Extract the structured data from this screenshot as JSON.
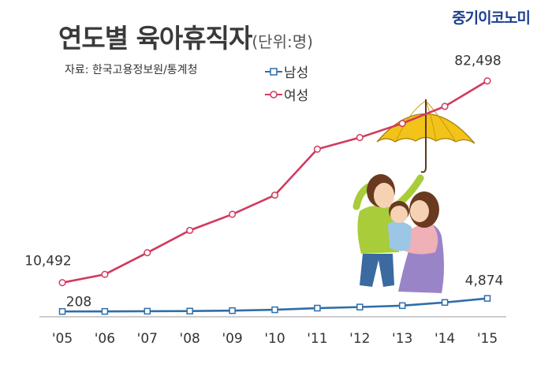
{
  "header": {
    "title": "연도별 육아휴직자",
    "unit": "(단위:명)",
    "brand": "중기이코노미",
    "source": "자료: 한국고용정보원/통계청"
  },
  "colors": {
    "female": "#d23a5e",
    "male": "#2f6ea8",
    "axis": "#bbbbbb"
  },
  "chart_data": {
    "type": "line",
    "title": "연도별 육아휴직자",
    "x": [
      "'05",
      "'06",
      "'07",
      "'08",
      "'09",
      "'10",
      "'11",
      "'12",
      "'13",
      "'14",
      "'15"
    ],
    "ylim": [
      0,
      90000
    ],
    "grid": false,
    "legend_position": "top-center",
    "series": [
      {
        "name": "남성",
        "key": "male",
        "marker": "square",
        "values": [
          208,
          230,
          310,
          355,
          502,
          819,
          1402,
          1790,
          2293,
          3421,
          4874
        ]
      },
      {
        "name": "여성",
        "key": "female",
        "marker": "circle",
        "values": [
          10492,
          13440,
          21185,
          29145,
          34898,
          41732,
          58137,
          62281,
          67323,
          73412,
          82498
        ]
      }
    ],
    "data_labels": [
      {
        "series": "male",
        "index": 0,
        "text": "208"
      },
      {
        "series": "male",
        "index": 10,
        "text": "4,874"
      },
      {
        "series": "female",
        "index": 0,
        "text": "10,492"
      },
      {
        "series": "female",
        "index": 10,
        "text": "82,498"
      }
    ]
  }
}
